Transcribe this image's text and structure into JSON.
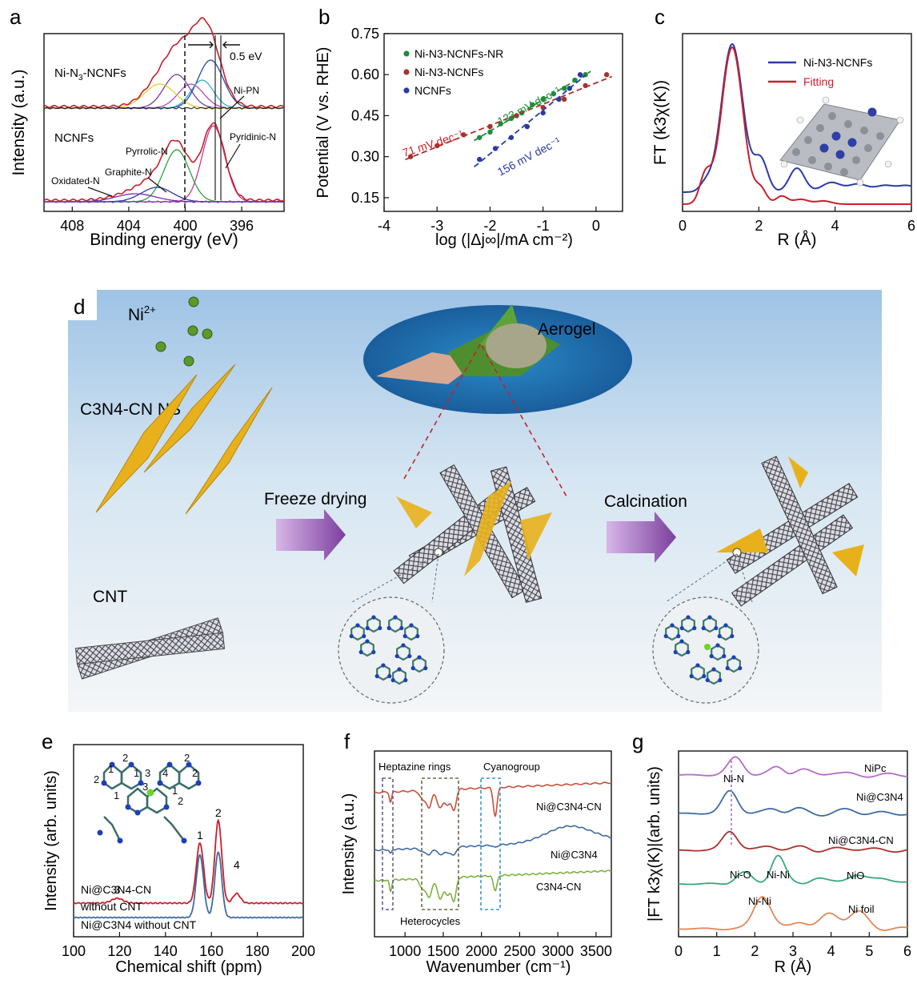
{
  "colors": {
    "bg": "#ffffff",
    "axis": "#111111",
    "red": "#c8202a",
    "blue": "#2b3aa8",
    "green": "#1e8c3a",
    "purple": "#b06ec8",
    "steel": "#3f6aa0",
    "maroon": "#a8322e",
    "teal": "#3aa87a",
    "orange": "#e0885a"
  },
  "chart_data": [
    {
      "panel": "a",
      "type": "line",
      "xlabel": "Binding energy (eV)",
      "ylabel": "Intensity (a.u.)",
      "xticks": [
        "408",
        "404",
        "400",
        "396"
      ],
      "xlim": [
        410,
        393
      ],
      "reversed_x": true,
      "labels": {
        "top": "Ni-N3-NCNFs",
        "top_pre": "Ni-N",
        "top_sub": "3",
        "top_post": "-NCNFs",
        "bottom": "NCNFs",
        "shift": "0.5 eV",
        "nipn": "Ni-PN",
        "pyrrolic": "Pyrrolic-N",
        "pyridinic": "Pyridinic-N",
        "graphite": "Graphite-N",
        "oxidated": "Oxidated-N"
      },
      "series": [
        {
          "name": "Ni-N3-NCNFs",
          "peaks": [
            398.2,
            398.8,
            399.6,
            400.6,
            401.8
          ]
        },
        {
          "name": "NCNFs",
          "peaks": [
            398.0,
            400.6,
            402.0,
            403.5
          ]
        }
      ]
    },
    {
      "panel": "b",
      "type": "scatter",
      "xlabel": "log (|Δj∞|/mA cm⁻²)",
      "ylabel": "Potential (V vs. RHE)",
      "xlim": [
        -4,
        0.5
      ],
      "ylim": [
        0.1,
        0.75
      ],
      "xticks": [
        "-4",
        "-3",
        "-2",
        "-1",
        "0"
      ],
      "yticks": [
        "0.15",
        "0.30",
        "0.45",
        "0.60",
        "0.75"
      ],
      "series": [
        {
          "name": "Ni-N3-NCNFs-NR",
          "slope_label": "123 mV dec⁻¹",
          "x": [
            -2.2,
            -2.0,
            -1.8,
            -1.6,
            -1.4,
            -1.2,
            -1.0,
            -0.8,
            -0.6,
            -0.4,
            -0.2
          ],
          "y": [
            0.37,
            0.39,
            0.42,
            0.44,
            0.46,
            0.49,
            0.51,
            0.53,
            0.55,
            0.58,
            0.6
          ]
        },
        {
          "name": "Ni-N3-NCNFs",
          "slope_label": "71 mV dec⁻¹",
          "x": [
            -3.5,
            -3.0,
            -2.5,
            -2.0,
            -1.5,
            -1.0,
            -0.6,
            -0.2,
            0.2
          ],
          "y": [
            0.3,
            0.34,
            0.38,
            0.41,
            0.45,
            0.48,
            0.51,
            0.56,
            0.6
          ]
        },
        {
          "name": "NCNFs",
          "slope_label": "156 mV dec⁻¹",
          "x": [
            -2.2,
            -1.9,
            -1.6,
            -1.3,
            -1.0,
            -0.7,
            -0.5,
            -0.3
          ],
          "y": [
            0.29,
            0.33,
            0.37,
            0.41,
            0.46,
            0.51,
            0.55,
            0.6
          ]
        }
      ]
    },
    {
      "panel": "c",
      "type": "line",
      "xlabel": "R (Å)",
      "ylabel": "FT (k3χ(K))",
      "xlim": [
        0,
        6
      ],
      "xticks": [
        "0",
        "2",
        "4",
        "6"
      ],
      "series": [
        {
          "name": "Ni-N3-NCNFs"
        },
        {
          "name": "Fitting"
        }
      ]
    },
    {
      "panel": "e",
      "type": "line",
      "xlabel": "Chemical shift (ppm)",
      "ylabel": "Intensity (arb. units)",
      "xlim": [
        100,
        200
      ],
      "xticks": [
        "100",
        "120",
        "140",
        "160",
        "180",
        "200"
      ],
      "peak_labels": [
        {
          "label": "3",
          "x": 119
        },
        {
          "label": "1",
          "x": 155
        },
        {
          "label": "2",
          "x": 163
        },
        {
          "label": "4",
          "x": 171
        }
      ],
      "series": [
        {
          "name": "Ni@C3N4-CN without CNT",
          "peaks": [
            119,
            155,
            163,
            171
          ]
        },
        {
          "name": "Ni@C3N4 without CNT",
          "peaks": [
            155,
            163
          ]
        }
      ]
    },
    {
      "panel": "f",
      "type": "line",
      "xlabel": "Wavenumber (cm⁻¹)",
      "ylabel": "Intensity (a.u.)",
      "xlim": [
        600,
        3700
      ],
      "xticks": [
        "1000",
        "1500",
        "2000",
        "2500",
        "3000",
        "3500"
      ],
      "annotations": [
        "Heptazine rings",
        "Cyanogroup",
        "Heterocycles"
      ],
      "series": [
        {
          "name": "Ni@C3N4-CN"
        },
        {
          "name": "Ni@C3N4"
        },
        {
          "name": "C3N4-CN"
        }
      ]
    },
    {
      "panel": "g",
      "type": "line",
      "xlabel": "R (Å)",
      "ylabel": "|FT k3χ(K)|(arb. units)",
      "xlim": [
        0,
        6
      ],
      "xticks": [
        "0",
        "1",
        "2",
        "3",
        "4",
        "5",
        "6"
      ],
      "annotations": [
        "Ni-N",
        "Ni-O",
        "Ni-Ni",
        "Ni-Ni"
      ],
      "series": [
        {
          "name": "NiPc"
        },
        {
          "name": "Ni@C3N4"
        },
        {
          "name": "Ni@C3N4-CN"
        },
        {
          "name": "NiO"
        },
        {
          "name": "Ni foil"
        }
      ]
    }
  ],
  "panels": {
    "a": "a",
    "b": "b",
    "c": "c",
    "d": "d",
    "e": "e",
    "f": "f",
    "g": "g"
  },
  "b_legend": [
    "Ni-N3-NCNFs-NR",
    "Ni-N3-NCNFs",
    "NCNFs"
  ],
  "c_legend": [
    "Ni-N3-NCNFs",
    "Fitting"
  ],
  "d": {
    "ni": "Ni",
    "ni_sup": "2+",
    "c3n4": "C3N4-CN NS",
    "cnt": "CNT",
    "aerogel": "Aerogel",
    "freeze": "Freeze drying",
    "calc": "Calcination"
  },
  "e": {
    "s1": "Ni@C3N4-CN",
    "s1b": "without CNT",
    "s2": "Ni@C3N4 without CNT"
  },
  "f": {
    "hept": "Heptazine rings",
    "cyano": "Cyanogroup",
    "hetero": "Heterocycles",
    "s1": "Ni@C3N4-CN",
    "s2": "Ni@C3N4",
    "s3": "C3N4-CN"
  },
  "g": {
    "nipc": "NiPc",
    "nic3n4": "Ni@C3N4",
    "nic3n4cn": "Ni@C3N4-CN",
    "nio": "NiO",
    "nifoil": "Ni foil",
    "nin": "Ni-N",
    "nio_b": "Ni-O",
    "nini1": "Ni-Ni",
    "nini2": "Ni-Ni"
  }
}
